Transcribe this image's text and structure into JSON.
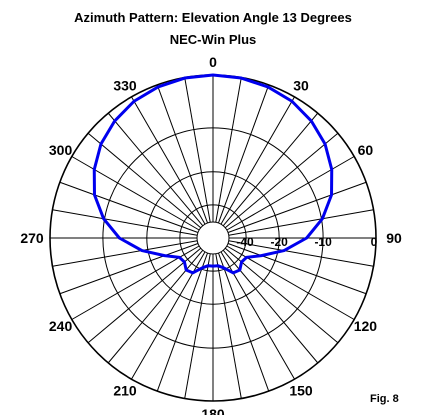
{
  "chart_data": {
    "type": "polar-line",
    "title": "Azimuth Pattern:  Elevation Angle 13 Degrees",
    "subtitle": "NEC-Win Plus",
    "figure_label": "Fig. 8",
    "angular_ticks": [
      {
        "deg": 0,
        "label": "0"
      },
      {
        "deg": 30,
        "label": "30"
      },
      {
        "deg": 60,
        "label": "60"
      },
      {
        "deg": 90,
        "label": "90"
      },
      {
        "deg": 120,
        "label": "120"
      },
      {
        "deg": 150,
        "label": "150"
      },
      {
        "deg": 180,
        "label": "180"
      },
      {
        "deg": 210,
        "label": "210"
      },
      {
        "deg": 240,
        "label": "240"
      },
      {
        "deg": 270,
        "label": "270"
      },
      {
        "deg": 300,
        "label": "300"
      },
      {
        "deg": 330,
        "label": "330"
      }
    ],
    "spoke_step_deg": 10,
    "radial_scale_db": [
      {
        "db": 0,
        "label": "0"
      },
      {
        "db": -10,
        "label": "-10"
      },
      {
        "db": -20,
        "label": "-20"
      },
      {
        "db": -30,
        "label": ""
      },
      {
        "db": -40,
        "label": "-40"
      }
    ],
    "series": [
      {
        "color": "#0000ee",
        "points": [
          {
            "az": 0,
            "db": 0.0
          },
          {
            "az": 10,
            "db": -0.1
          },
          {
            "az": 20,
            "db": -0.4
          },
          {
            "az": 30,
            "db": -0.9
          },
          {
            "az": 40,
            "db": -1.8
          },
          {
            "az": 50,
            "db": -3.0
          },
          {
            "az": 60,
            "db": -4.7
          },
          {
            "az": 70,
            "db": -6.8
          },
          {
            "az": 80,
            "db": -9.8
          },
          {
            "az": 90,
            "db": -13.5
          },
          {
            "az": 100,
            "db": -18.5
          },
          {
            "az": 110,
            "db": -24.0
          },
          {
            "az": 120,
            "db": -28.0
          },
          {
            "az": 130,
            "db": -28.5
          },
          {
            "az": 140,
            "db": -27.0
          },
          {
            "az": 150,
            "db": -27.5
          },
          {
            "az": 160,
            "db": -30.5
          },
          {
            "az": 170,
            "db": -32.0
          },
          {
            "az": 180,
            "db": -32.0
          },
          {
            "az": 190,
            "db": -32.0
          },
          {
            "az": 200,
            "db": -30.5
          },
          {
            "az": 210,
            "db": -27.5
          },
          {
            "az": 220,
            "db": -27.0
          },
          {
            "az": 230,
            "db": -28.5
          },
          {
            "az": 240,
            "db": -28.0
          },
          {
            "az": 250,
            "db": -24.0
          },
          {
            "az": 260,
            "db": -18.5
          },
          {
            "az": 270,
            "db": -13.5
          },
          {
            "az": 280,
            "db": -9.8
          },
          {
            "az": 290,
            "db": -6.8
          },
          {
            "az": 300,
            "db": -4.7
          },
          {
            "az": 310,
            "db": -3.0
          },
          {
            "az": 320,
            "db": -1.8
          },
          {
            "az": 330,
            "db": -0.9
          },
          {
            "az": 340,
            "db": -0.4
          },
          {
            "az": 350,
            "db": -0.1
          }
        ]
      }
    ]
  }
}
